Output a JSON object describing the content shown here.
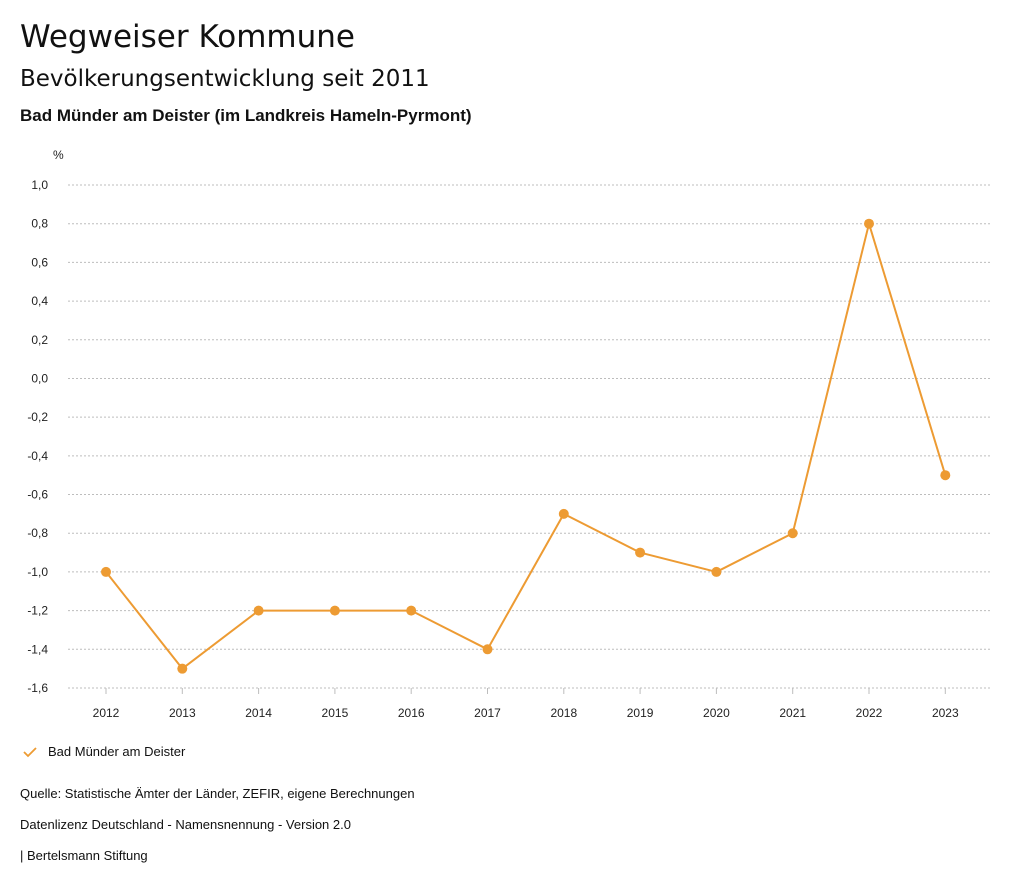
{
  "header": {
    "title": "Wegweiser Kommune",
    "subtitle": "Bevölkerungsentwicklung seit 2011",
    "region": "Bad Münder am Deister (im Landkreis Hameln-Pyrmont)"
  },
  "chart_data": {
    "type": "line",
    "title": "Bevölkerungsentwicklung seit 2011",
    "ylabel": "%",
    "xlabel": "",
    "ylim": [
      -1.6,
      1.0
    ],
    "y_ticks": [
      1.0,
      0.8,
      0.6,
      0.4,
      0.2,
      0.0,
      -0.2,
      -0.4,
      -0.6,
      -0.8,
      -1.0,
      -1.2,
      -1.4,
      -1.6
    ],
    "y_tick_labels": [
      "1,0",
      "0,8",
      "0,6",
      "0,4",
      "0,2",
      "0,0",
      "-0,2",
      "-0,4",
      "-0,6",
      "-0,8",
      "-1,0",
      "-1,2",
      "-1,4",
      "-1,6"
    ],
    "categories": [
      "2012",
      "2013",
      "2014",
      "2015",
      "2016",
      "2017",
      "2018",
      "2019",
      "2020",
      "2021",
      "2022",
      "2023"
    ],
    "series": [
      {
        "name": "Bad Münder am Deister",
        "values": [
          -1.0,
          -1.5,
          -1.2,
          -1.2,
          -1.2,
          -1.4,
          -0.7,
          -0.9,
          -1.0,
          -0.8,
          0.8,
          -0.5
        ],
        "color": "#ED9B33"
      }
    ],
    "grid": true,
    "legend_position": "bottom-left"
  },
  "legend": {
    "label": "Bad Münder am Deister",
    "icon": "checkmark-icon",
    "color": "#ED9B33"
  },
  "footer": {
    "source": "Quelle: Statistische Ämter der Länder, ZEFIR, eigene Berechnungen",
    "license": "Datenlizenz Deutschland - Namensnennung - Version 2.0",
    "publisher": "| Bertelsmann Stiftung"
  }
}
